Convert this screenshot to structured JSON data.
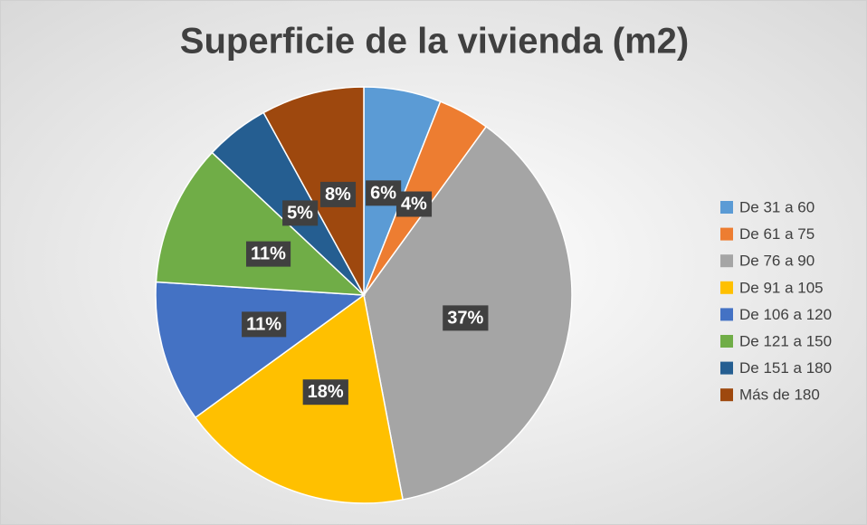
{
  "chart_data": {
    "type": "pie",
    "title": "Superficie de la vivienda (m2)",
    "categories": [
      "De 31 a 60",
      "De 61 a 75",
      "De 76 a 90",
      "De 91 a 105",
      "De 106 a 120",
      "De 121 a 150",
      "De 151 a 180",
      "Más de 180"
    ],
    "values": [
      6,
      4,
      37,
      18,
      11,
      11,
      5,
      8
    ],
    "value_labels": [
      "6%",
      "4%",
      "37%",
      "18%",
      "11%",
      "11%",
      "5%",
      "8%"
    ],
    "colors": [
      "#5b9bd5",
      "#ed7d31",
      "#a5a5a5",
      "#ffc000",
      "#4472c4",
      "#70ad47",
      "#255e91",
      "#9e480e"
    ],
    "legend": "right"
  }
}
